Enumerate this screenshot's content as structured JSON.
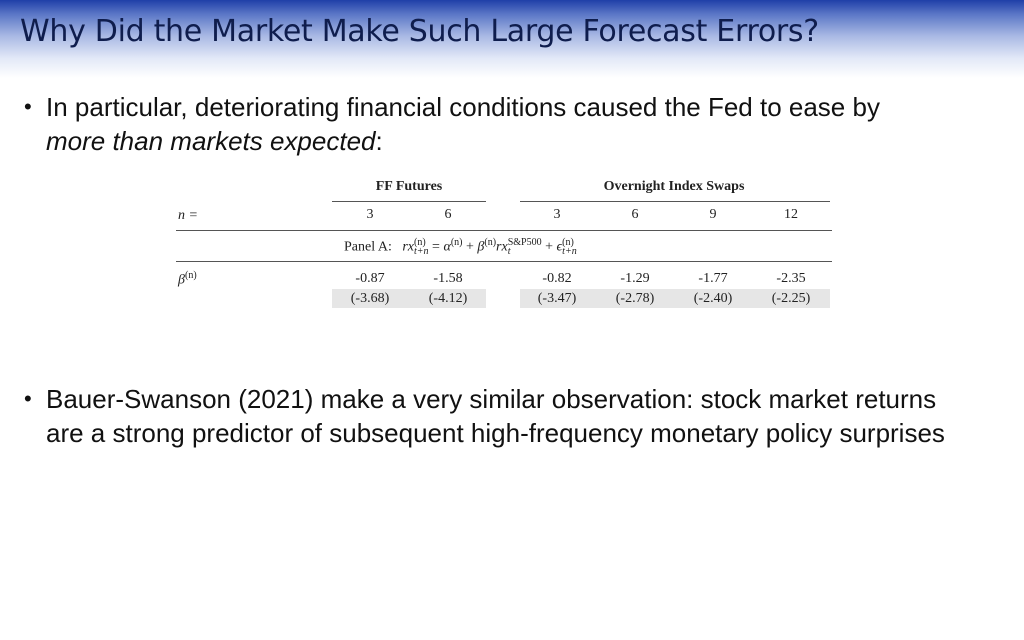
{
  "title": "Why Did the Market Make Such Large Forecast Errors?",
  "bullet1": {
    "text": "In particular, deteriorating financial conditions caused the Fed to ease by",
    "italic": "more than markets expected",
    "suffix": ":"
  },
  "bullet2": {
    "text": "Bauer-Swanson (2021) make a very similar observation:  stock market returns are a strong predictor of subsequent high-frequency monetary policy surprises"
  },
  "table": {
    "group_ff": "FF Futures",
    "group_ois": "Overnight Index Swaps",
    "n_label": "n =",
    "horizons": [
      "3",
      "6",
      "3",
      "6",
      "9",
      "12"
    ],
    "panel_label": "Panel A:",
    "beta_label": "β",
    "beta_sup": "(n)",
    "coefficients": [
      "-0.87",
      "-1.58",
      "-0.82",
      "-1.29",
      "-1.77",
      "-2.35"
    ],
    "tstats": [
      "(-3.68)",
      "(-4.12)",
      "(-3.47)",
      "(-2.78)",
      "(-2.40)",
      "(-2.25)"
    ],
    "equation": {
      "rx": "rx",
      "sup_n": "(n)",
      "sub_tn": "t+n",
      "eq": "=",
      "alpha": "α",
      "plus": "+",
      "beta": "β",
      "sp": "S&P500",
      "sub_t": "t",
      "eps": "ϵ"
    }
  }
}
